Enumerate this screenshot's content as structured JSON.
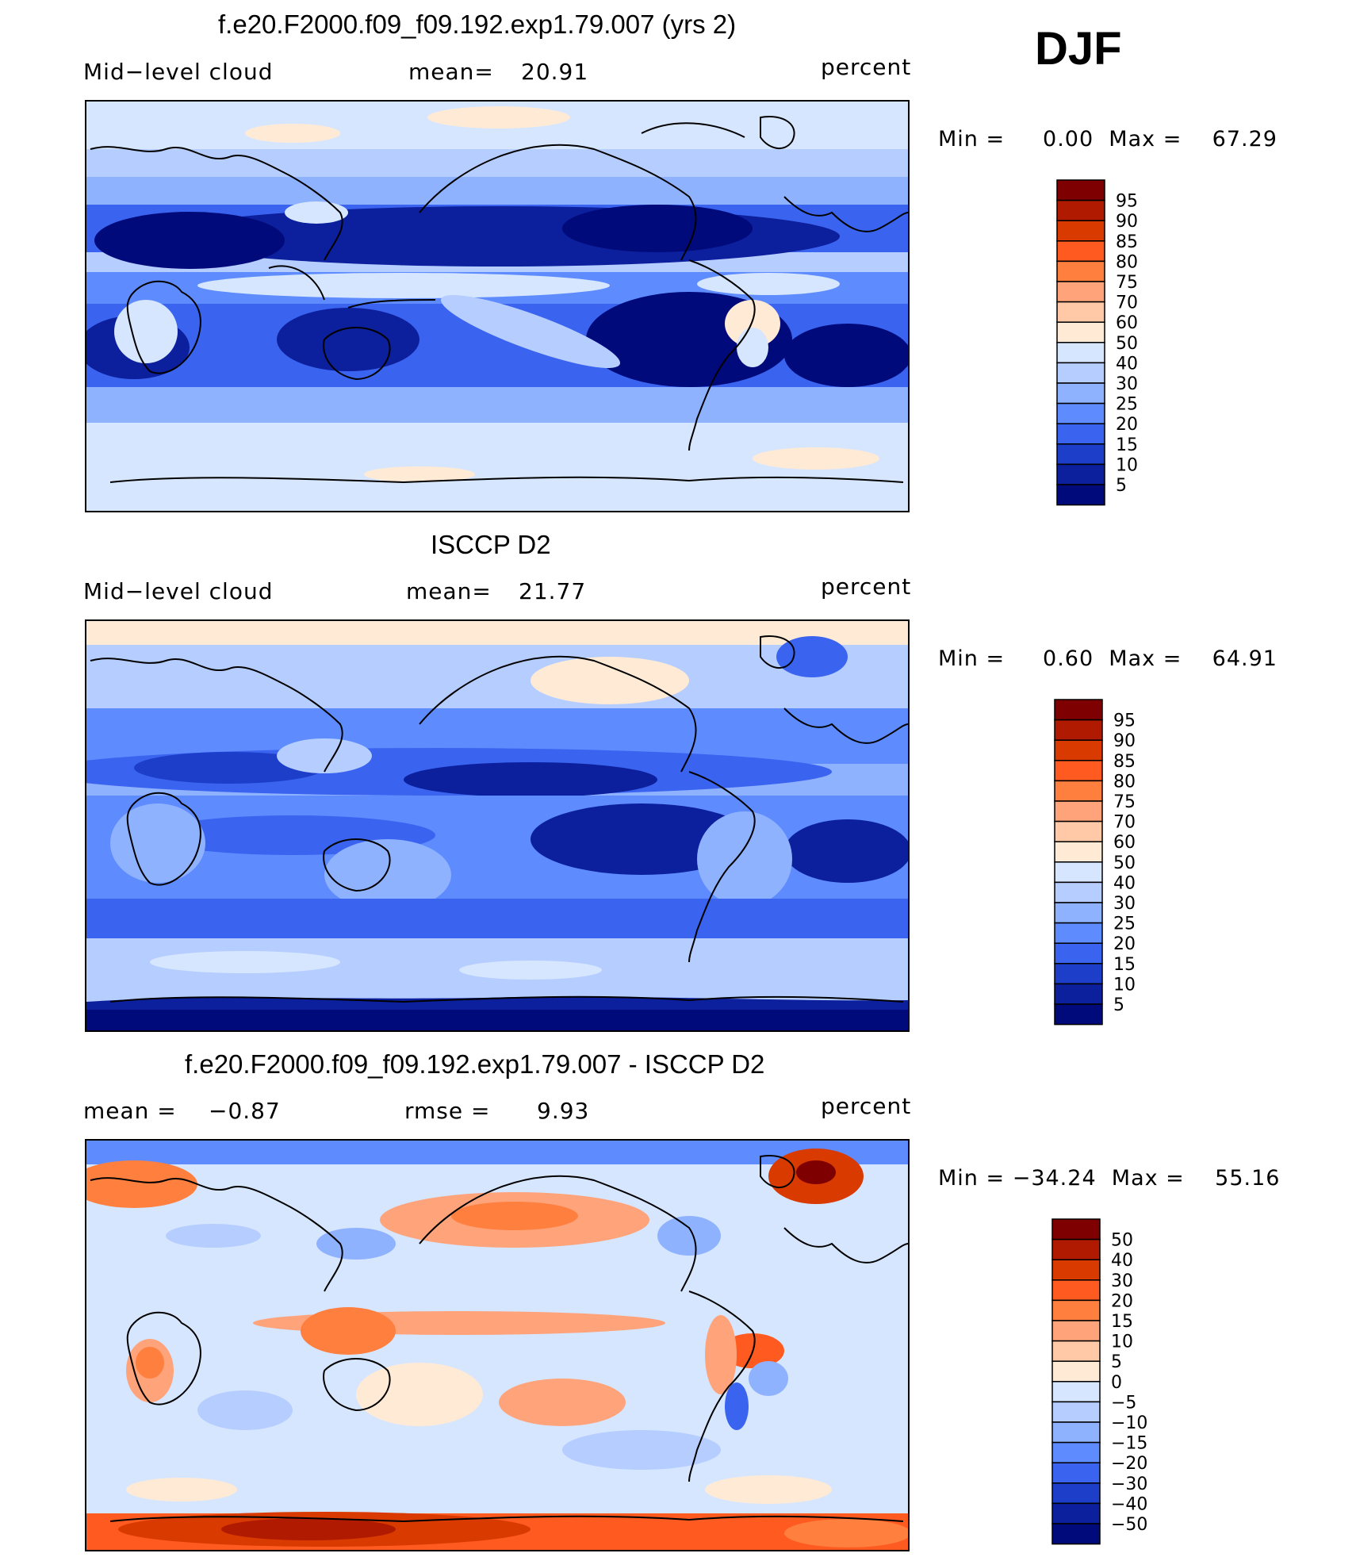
{
  "season": "DJF",
  "panels": [
    {
      "title": "f.e20.F2000.f09_f09.192.exp1.79.007 (yrs 2)",
      "left": "Mid−level cloud",
      "center_label": "mean=",
      "center_value": "20.91",
      "units": "percent",
      "minmax": "Min =     0.00  Max =    67.29",
      "colorbar": {
        "labels": [
          "95",
          "90",
          "85",
          "80",
          "75",
          "70",
          "60",
          "50",
          "40",
          "30",
          "25",
          "20",
          "15",
          "10",
          "5"
        ],
        "colors": [
          "#7f0000",
          "#b01a00",
          "#d93a00",
          "#ff5a1f",
          "#ff7f3f",
          "#ffa37a",
          "#ffc9a8",
          "#ffead6",
          "#d6e6ff",
          "#b5cdff",
          "#8fb2ff",
          "#5e8cff",
          "#3a64f0",
          "#1c3ec8",
          "#0c1f9c",
          "#000a7a"
        ]
      },
      "map_style": "model"
    },
    {
      "title": "ISCCP D2",
      "left": "Mid−level cloud",
      "center_label": "mean=",
      "center_value": "21.77",
      "units": "percent",
      "minmax": "Min =     0.60  Max =    64.91",
      "colorbar": {
        "labels": [
          "95",
          "90",
          "85",
          "80",
          "75",
          "70",
          "60",
          "50",
          "40",
          "30",
          "25",
          "20",
          "15",
          "10",
          "5"
        ],
        "colors": [
          "#7f0000",
          "#b01a00",
          "#d93a00",
          "#ff5a1f",
          "#ff7f3f",
          "#ffa37a",
          "#ffc9a8",
          "#ffead6",
          "#d6e6ff",
          "#b5cdff",
          "#8fb2ff",
          "#5e8cff",
          "#3a64f0",
          "#1c3ec8",
          "#0c1f9c",
          "#000a7a"
        ]
      },
      "map_style": "obs"
    },
    {
      "title": "f.e20.F2000.f09_f09.192.exp1.79.007 - ISCCP D2",
      "left_label": "mean =",
      "left_value": "−0.87",
      "center_label": "rmse =",
      "center_value": "9.93",
      "units": "percent",
      "minmax": "Min = −34.24  Max =    55.16",
      "colorbar": {
        "labels": [
          "50",
          "40",
          "30",
          "20",
          "15",
          "10",
          "5",
          "0",
          "−5",
          "−10",
          "−15",
          "−20",
          "−30",
          "−40",
          "−50"
        ],
        "colors": [
          "#7f0000",
          "#b01a00",
          "#d93a00",
          "#ff5a1f",
          "#ff7f3f",
          "#ffa37a",
          "#ffc9a8",
          "#ffead6",
          "#d6e6ff",
          "#b5cdff",
          "#8fb2ff",
          "#5e8cff",
          "#3a64f0",
          "#1c3ec8",
          "#0c1f9c",
          "#000a7a"
        ]
      },
      "map_style": "diff"
    }
  ]
}
